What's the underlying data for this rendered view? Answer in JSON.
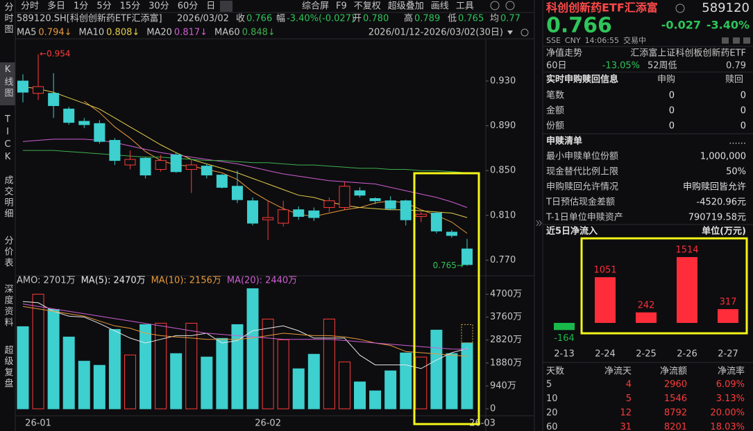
{
  "toolbar": {
    "tabs": [
      "分时",
      "多日",
      "1分",
      "5分",
      "15分",
      "30分",
      "60分",
      "日"
    ],
    "tools": [
      "综合屏",
      "F9",
      "不复权",
      "超级叠加",
      "画线",
      "工具"
    ]
  },
  "sidebar": [
    "分时图",
    "K线图",
    "TICK",
    "成交明细",
    "分价表",
    "深度资料",
    "超级复盘"
  ],
  "quote": {
    "name": "589120.SH[科创创新药ETF汇添富]",
    "date": "2026/03/02",
    "items": [
      {
        "label": "收",
        "value": "0.766"
      },
      {
        "label": "幅",
        "value": "-3.40%(-0.027)"
      },
      {
        "label": "开",
        "value": "0.780"
      },
      {
        "label": "高",
        "value": "0.789"
      },
      {
        "label": "低",
        "value": "0.765"
      },
      {
        "label": "均",
        "value": "0.77"
      }
    ]
  },
  "chart_data": [
    {
      "type": "candlestick",
      "range": "2026/01/12-2026/03/02(30日)",
      "open": [
        0.93,
        0.919,
        0.919,
        0.905,
        0.894,
        0.892,
        0.877,
        0.855,
        0.861,
        0.851,
        0.864,
        0.851,
        0.854,
        0.846,
        0.836,
        0.823,
        0.806,
        0.803,
        0.815,
        0.814,
        0.817,
        0.817,
        0.832,
        0.825,
        0.823,
        0.823,
        0.809,
        0.812,
        0.795,
        0.78
      ],
      "high": [
        0.936,
        0.954,
        0.937,
        0.907,
        0.897,
        0.895,
        0.879,
        0.868,
        0.862,
        0.864,
        0.866,
        0.86,
        0.856,
        0.847,
        0.85,
        0.826,
        0.823,
        0.823,
        0.818,
        0.817,
        0.826,
        0.84,
        0.835,
        0.826,
        0.827,
        0.824,
        0.813,
        0.813,
        0.797,
        0.789
      ],
      "low": [
        0.911,
        0.913,
        0.897,
        0.891,
        0.888,
        0.874,
        0.855,
        0.851,
        0.843,
        0.849,
        0.848,
        0.83,
        0.843,
        0.834,
        0.821,
        0.801,
        0.788,
        0.8,
        0.806,
        0.805,
        0.813,
        0.815,
        0.826,
        0.82,
        0.815,
        0.801,
        0.804,
        0.794,
        0.79,
        0.765
      ],
      "close": [
        0.92,
        0.925,
        0.908,
        0.893,
        0.891,
        0.876,
        0.859,
        0.86,
        0.846,
        0.859,
        0.849,
        0.855,
        0.846,
        0.835,
        0.824,
        0.803,
        0.808,
        0.815,
        0.809,
        0.808,
        0.823,
        0.836,
        0.828,
        0.823,
        0.816,
        0.806,
        0.811,
        0.796,
        0.792,
        0.766
      ],
      "up_color": "#ff3b3b",
      "down_color": "#3ecfcf",
      "ylim": [
        0.756,
        0.964
      ],
      "yticks": [
        {
          "value": 0.93,
          "label": "0.930"
        },
        {
          "value": 0.89,
          "label": "0.890"
        },
        {
          "value": 0.85,
          "label": "0.850"
        },
        {
          "value": 0.81,
          "label": "0.810"
        },
        {
          "value": 0.77,
          "label": "0.770"
        }
      ],
      "ma_lines": [
        {
          "name": "MA5",
          "label": "0.794↓",
          "color": "#e89a3c",
          "values": [
            null,
            null,
            null,
            null,
            0.912,
            0.902,
            0.889,
            0.879,
            0.867,
            0.859,
            0.855,
            0.854,
            0.851,
            0.848,
            0.842,
            0.831,
            0.823,
            0.816,
            0.811,
            0.809,
            0.812,
            0.815,
            0.817,
            0.821,
            0.823,
            0.821,
            0.815,
            0.81,
            0.804,
            0.794
          ]
        },
        {
          "name": "MA10",
          "label": "0.808↓",
          "color": "#e6d04a",
          "values": [
            0.925,
            0.923,
            0.92,
            0.915,
            0.91,
            0.905,
            0.897,
            0.889,
            0.881,
            0.873,
            0.866,
            0.86,
            0.856,
            0.852,
            0.848,
            0.843,
            0.838,
            0.833,
            0.828,
            0.826,
            0.822,
            0.819,
            0.817,
            0.816,
            0.815,
            0.815,
            0.814,
            0.813,
            0.812,
            0.808
          ]
        },
        {
          "name": "MA20",
          "label": "0.817↓",
          "color": "#cf5fd3",
          "values": [
            0.876,
            0.877,
            0.878,
            0.878,
            0.878,
            0.877,
            0.875,
            0.872,
            0.869,
            0.866,
            0.864,
            0.862,
            0.86,
            0.858,
            0.856,
            0.853,
            0.85,
            0.847,
            0.845,
            0.843,
            0.841,
            0.84,
            0.839,
            0.838,
            0.835,
            0.832,
            0.829,
            0.826,
            0.822,
            0.817
          ]
        },
        {
          "name": "MA60",
          "label": "0.848↓",
          "color": "#3fb04f",
          "values": [
            0.868,
            0.868,
            0.868,
            0.867,
            0.866,
            0.865,
            0.864,
            0.863,
            0.862,
            0.862,
            0.861,
            0.86,
            0.859,
            0.859,
            0.858,
            0.857,
            0.857,
            0.856,
            0.855,
            0.855,
            0.854,
            0.853,
            0.852,
            0.852,
            0.851,
            0.851,
            0.85,
            0.85,
            0.849,
            0.848
          ]
        }
      ],
      "annotations": [
        {
          "label": "←0.954",
          "value": 0.954,
          "index": 1,
          "color": "#ff3b3b"
        },
        {
          "label": "0.765→",
          "value": 0.765,
          "index": 29,
          "color": "#2ec55a"
        }
      ],
      "date_labels": [
        {
          "label": "26-01",
          "index": 1
        },
        {
          "label": "26-02",
          "index": 16
        },
        {
          "label": "26-03",
          "index": 30
        }
      ]
    },
    {
      "type": "bar",
      "amo": {
        "name": "AMO:",
        "label": "2701万"
      },
      "values": [
        3369,
        4700,
        4077,
        2945,
        1954,
        1784,
        3256,
        2208,
        3454,
        3511,
        2265,
        3511,
        2124,
        2888,
        3454,
        4926,
        3681,
        2831,
        1642,
        2237,
        3681,
        1925,
        1104,
        736,
        1557,
        2293,
        2124,
        3228,
        2265,
        2701
      ],
      "projected": 3454,
      "ylim": [
        0,
        5000
      ],
      "yticks": [
        {
          "value": 4700,
          "label": "4700万"
        },
        {
          "value": 3760,
          "label": "3760万"
        },
        {
          "value": 2820,
          "label": "2820万"
        },
        {
          "value": 1880,
          "label": "1880万"
        },
        {
          "value": 940,
          "label": "940万"
        },
        0
      ],
      "ma_lines": [
        {
          "name": "MA(5):",
          "label": "2470万",
          "color": "#e8e8e8",
          "values": [
            4400,
            4350,
            4000,
            3800,
            3760,
            3500,
            3200,
            2900,
            2700,
            2850,
            3000,
            3000,
            3100,
            2700,
            2800,
            3200,
            3300,
            3400,
            3200,
            2900,
            2900,
            2900,
            2200,
            1800,
            1800,
            1800,
            1650,
            2000,
            2300,
            2470
          ]
        },
        {
          "name": "MA(10):",
          "label": "2156万",
          "color": "#e89a3c",
          "values": [
            4200,
            4100,
            4000,
            3900,
            3800,
            3600,
            3400,
            3300,
            3100,
            3000,
            2950,
            2900,
            2850,
            2850,
            2850,
            2900,
            3000,
            3100,
            3050,
            3000,
            3000,
            2950,
            2850,
            2700,
            2600,
            2350,
            2300,
            2250,
            2200,
            2156
          ]
        },
        {
          "name": "MA(20):",
          "label": "2440万",
          "color": "#cf5fd3",
          "values": [
            4300,
            4200,
            4100,
            4000,
            3900,
            3800,
            3700,
            3600,
            3500,
            3400,
            3300,
            3200,
            3100,
            3050,
            3000,
            2950,
            2900,
            2850,
            2850,
            2850,
            2850,
            2800,
            2750,
            2700,
            2650,
            2600,
            2550,
            2500,
            2450,
            2440
          ]
        }
      ]
    },
    {
      "type": "bar",
      "title": "近5日净流入",
      "unit": "单位(万元)",
      "categories": [
        "2-13",
        "2-24",
        "2-25",
        "2-26",
        "2-27"
      ],
      "values": [
        -164,
        1051,
        242,
        1514,
        317
      ],
      "up_color": "#ff2d3a",
      "down_color": "#19b84a"
    }
  ],
  "panel": {
    "name": "科创创新药ETF汇添富",
    "code": "589120",
    "price": "0.766",
    "change": "-0.027",
    "pct": "-3.40%",
    "status": [
      "SSE",
      "CNY",
      "14:06:55",
      "交易中"
    ],
    "nav": {
      "title": "净值走势",
      "fund": "汇添富上证科创板创新药ETF",
      "period": "60日",
      "return": "-13.05%",
      "low_label": "52周低",
      "low": "0.79"
    },
    "realtime": {
      "title": "实时申购赎回信息",
      "columns": [
        "申购",
        "赎回"
      ],
      "rows": [
        [
          "笔数",
          "0",
          "0"
        ],
        [
          "金额",
          "0",
          "0"
        ],
        [
          "份额",
          "0",
          "0"
        ]
      ]
    },
    "list": {
      "title": "申赎清单",
      "more": "......",
      "rows": [
        [
          "最小申赎单位份额",
          "1,000,000"
        ],
        [
          "现金替代比例上限",
          "50%"
        ],
        [
          "申购赎回允许情况",
          "申购赎回皆允许"
        ],
        [
          "T日预估现金差额",
          "-4520.96元"
        ],
        [
          "T-1日单位申赎资产",
          "790719.58元"
        ]
      ]
    },
    "flow_table": {
      "columns": [
        "天数",
        "净流天",
        "净流额",
        "净流率"
      ],
      "rows": [
        [
          "5",
          "4",
          "2960",
          "6.09%"
        ],
        [
          "10",
          "5",
          "1546",
          "3.13%"
        ],
        [
          "20",
          "12",
          "8792",
          "20.00%"
        ],
        [
          "60",
          "31",
          "8201",
          "18.03%"
        ]
      ]
    }
  }
}
